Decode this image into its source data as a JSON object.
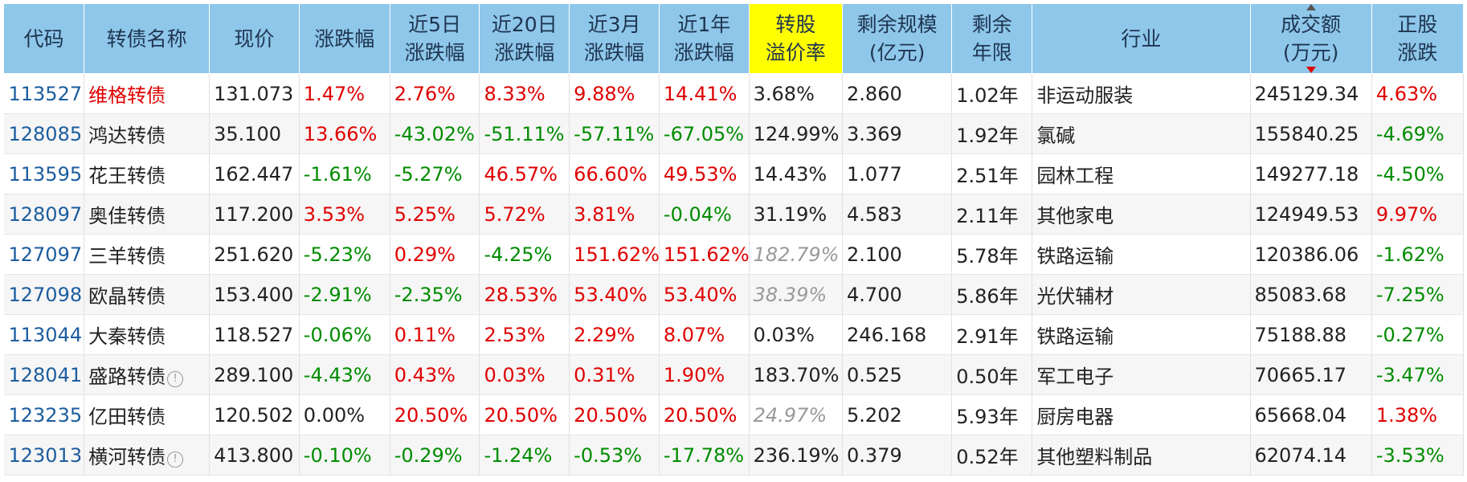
{
  "headers": [
    {
      "label": "代码"
    },
    {
      "label": "转债名称"
    },
    {
      "label": "现价"
    },
    {
      "label": "涨跌幅"
    },
    {
      "label": "近5日\n涨跌幅"
    },
    {
      "label": "近20日\n涨跌幅"
    },
    {
      "label": "近3月\n涨跌幅"
    },
    {
      "label": "近1年\n涨跌幅"
    },
    {
      "label": "转股\n溢价率"
    },
    {
      "label": "剩余规模\n(亿元)"
    },
    {
      "label": "剩余\n年限"
    },
    {
      "label": "行业"
    },
    {
      "label": "成交额\n(万元)"
    },
    {
      "label": "正股\n涨跌"
    }
  ],
  "colors": {
    "header_bg": "#8ec7ea",
    "header_highlight": "#ffff00",
    "code": "#1c5d9e",
    "up": "#e00000",
    "down": "#008c00",
    "muted": "#9a9a9a"
  },
  "rows": [
    {
      "code": "113527",
      "name": "维格转债",
      "name_color": "red",
      "info": false,
      "price": "131.073",
      "chg": {
        "v": "1.47%",
        "c": "red"
      },
      "d5": {
        "v": "2.76%",
        "c": "red"
      },
      "d20": {
        "v": "8.33%",
        "c": "red"
      },
      "m3": {
        "v": "9.88%",
        "c": "red"
      },
      "y1": {
        "v": "14.41%",
        "c": "red"
      },
      "premium": {
        "v": "3.68%",
        "c": ""
      },
      "size": "2.860",
      "years": "1.02年",
      "industry": "非运动服装",
      "turnover": "245129.34",
      "stock": {
        "v": "4.63%",
        "c": "red"
      }
    },
    {
      "code": "128085",
      "name": "鸿达转债",
      "name_color": "",
      "info": false,
      "price": "35.100",
      "chg": {
        "v": "13.66%",
        "c": "red"
      },
      "d5": {
        "v": "-43.02%",
        "c": "green"
      },
      "d20": {
        "v": "-51.11%",
        "c": "green"
      },
      "m3": {
        "v": "-57.11%",
        "c": "green"
      },
      "y1": {
        "v": "-67.05%",
        "c": "green"
      },
      "premium": {
        "v": "124.99%",
        "c": ""
      },
      "size": "3.369",
      "years": "1.92年",
      "industry": "氯碱",
      "turnover": "155840.25",
      "stock": {
        "v": "-4.69%",
        "c": "green"
      }
    },
    {
      "code": "113595",
      "name": "花王转债",
      "name_color": "",
      "info": false,
      "price": "162.447",
      "chg": {
        "v": "-1.61%",
        "c": "green"
      },
      "d5": {
        "v": "-5.27%",
        "c": "green"
      },
      "d20": {
        "v": "46.57%",
        "c": "red"
      },
      "m3": {
        "v": "66.60%",
        "c": "red"
      },
      "y1": {
        "v": "49.53%",
        "c": "red"
      },
      "premium": {
        "v": "14.43%",
        "c": ""
      },
      "size": "1.077",
      "years": "2.51年",
      "industry": "园林工程",
      "turnover": "149277.18",
      "stock": {
        "v": "-4.50%",
        "c": "green"
      }
    },
    {
      "code": "128097",
      "name": "奥佳转债",
      "name_color": "",
      "info": false,
      "price": "117.200",
      "chg": {
        "v": "3.53%",
        "c": "red"
      },
      "d5": {
        "v": "5.25%",
        "c": "red"
      },
      "d20": {
        "v": "5.72%",
        "c": "red"
      },
      "m3": {
        "v": "3.81%",
        "c": "red"
      },
      "y1": {
        "v": "-0.04%",
        "c": "green"
      },
      "premium": {
        "v": "31.19%",
        "c": ""
      },
      "size": "4.583",
      "years": "2.11年",
      "industry": "其他家电",
      "turnover": "124949.53",
      "stock": {
        "v": "9.97%",
        "c": "red"
      }
    },
    {
      "code": "127097",
      "name": "三羊转债",
      "name_color": "",
      "info": false,
      "price": "251.620",
      "chg": {
        "v": "-5.23%",
        "c": "green"
      },
      "d5": {
        "v": "0.29%",
        "c": "red"
      },
      "d20": {
        "v": "-4.25%",
        "c": "green"
      },
      "m3": {
        "v": "151.62%",
        "c": "red"
      },
      "y1": {
        "v": "151.62%",
        "c": "red"
      },
      "premium": {
        "v": "182.79%",
        "c": "gray"
      },
      "size": "2.100",
      "years": "5.78年",
      "industry": "铁路运输",
      "turnover": "120386.06",
      "stock": {
        "v": "-1.62%",
        "c": "green"
      }
    },
    {
      "code": "127098",
      "name": "欧晶转债",
      "name_color": "",
      "info": false,
      "price": "153.400",
      "chg": {
        "v": "-2.91%",
        "c": "green"
      },
      "d5": {
        "v": "-2.35%",
        "c": "green"
      },
      "d20": {
        "v": "28.53%",
        "c": "red"
      },
      "m3": {
        "v": "53.40%",
        "c": "red"
      },
      "y1": {
        "v": "53.40%",
        "c": "red"
      },
      "premium": {
        "v": "38.39%",
        "c": "gray"
      },
      "size": "4.700",
      "years": "5.86年",
      "industry": "光伏辅材",
      "turnover": "85083.68",
      "stock": {
        "v": "-7.25%",
        "c": "green"
      }
    },
    {
      "code": "113044",
      "name": "大秦转债",
      "name_color": "",
      "info": false,
      "price": "118.527",
      "chg": {
        "v": "-0.06%",
        "c": "green"
      },
      "d5": {
        "v": "0.11%",
        "c": "red"
      },
      "d20": {
        "v": "2.53%",
        "c": "red"
      },
      "m3": {
        "v": "2.29%",
        "c": "red"
      },
      "y1": {
        "v": "8.07%",
        "c": "red"
      },
      "premium": {
        "v": "0.03%",
        "c": ""
      },
      "size": "246.168",
      "years": "2.91年",
      "industry": "铁路运输",
      "turnover": "75188.88",
      "stock": {
        "v": "-0.27%",
        "c": "green"
      }
    },
    {
      "code": "128041",
      "name": "盛路转债",
      "name_color": "",
      "info": true,
      "price": "289.100",
      "chg": {
        "v": "-4.43%",
        "c": "green"
      },
      "d5": {
        "v": "0.43%",
        "c": "red"
      },
      "d20": {
        "v": "0.03%",
        "c": "red"
      },
      "m3": {
        "v": "0.31%",
        "c": "red"
      },
      "y1": {
        "v": "1.90%",
        "c": "red"
      },
      "premium": {
        "v": "183.70%",
        "c": ""
      },
      "size": "0.525",
      "years": "0.50年",
      "industry": "军工电子",
      "turnover": "70665.17",
      "stock": {
        "v": "-3.47%",
        "c": "green"
      }
    },
    {
      "code": "123235",
      "name": "亿田转债",
      "name_color": "",
      "info": false,
      "price": "120.502",
      "chg": {
        "v": "0.00%",
        "c": ""
      },
      "d5": {
        "v": "20.50%",
        "c": "red"
      },
      "d20": {
        "v": "20.50%",
        "c": "red"
      },
      "m3": {
        "v": "20.50%",
        "c": "red"
      },
      "y1": {
        "v": "20.50%",
        "c": "red"
      },
      "premium": {
        "v": "24.97%",
        "c": "gray"
      },
      "size": "5.202",
      "years": "5.93年",
      "industry": "厨房电器",
      "turnover": "65668.04",
      "stock": {
        "v": "1.38%",
        "c": "red"
      }
    },
    {
      "code": "123013",
      "name": "横河转债",
      "name_color": "",
      "info": true,
      "price": "413.800",
      "chg": {
        "v": "-0.10%",
        "c": "green"
      },
      "d5": {
        "v": "-0.29%",
        "c": "green"
      },
      "d20": {
        "v": "-1.24%",
        "c": "green"
      },
      "m3": {
        "v": "-0.53%",
        "c": "green"
      },
      "y1": {
        "v": "-17.78%",
        "c": "green"
      },
      "premium": {
        "v": "236.19%",
        "c": ""
      },
      "size": "0.379",
      "years": "0.52年",
      "industry": "其他塑料制品",
      "turnover": "62074.14",
      "stock": {
        "v": "-3.53%",
        "c": "green"
      }
    }
  ]
}
